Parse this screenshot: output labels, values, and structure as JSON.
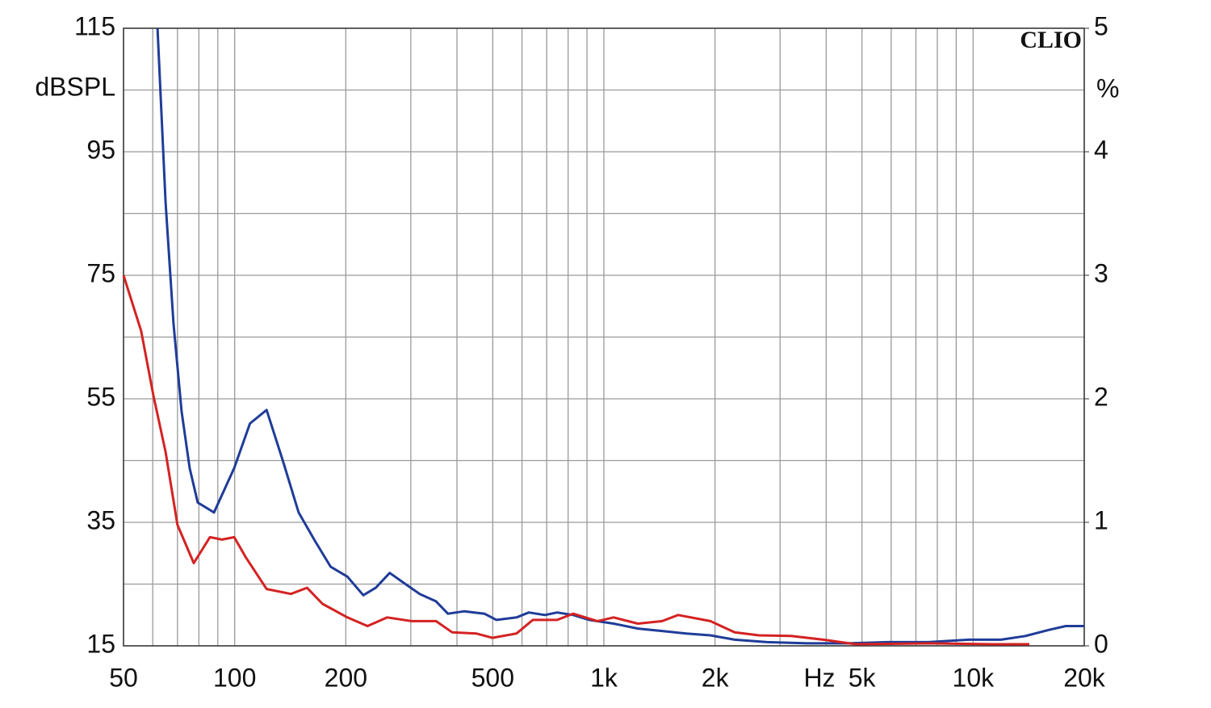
{
  "chart_data": {
    "type": "line",
    "xscale": "log",
    "grid": true,
    "xlim": [
      50,
      20000
    ],
    "xticks": [
      50,
      100,
      200,
      500,
      {
        "value": 1000,
        "label": "1k"
      },
      {
        "value": 2000,
        "label": "2k"
      },
      {
        "value": 5000,
        "label": "5k"
      },
      {
        "value": 10000,
        "label": "10k"
      },
      {
        "value": 20000,
        "label": "20k"
      }
    ],
    "xgrid": [
      60,
      70,
      80,
      90,
      300,
      400,
      600,
      700,
      800,
      900,
      3000,
      4000,
      6000,
      7000,
      8000,
      9000
    ],
    "xlabel": "Hz",
    "ylim": [
      15,
      115
    ],
    "yticks": [
      15,
      35,
      55,
      75,
      95,
      115
    ],
    "ygrid": [
      25,
      45,
      65,
      85,
      105
    ],
    "ylabel": "dBSPL",
    "y2lim": [
      0,
      5
    ],
    "y2ticks": [
      0,
      1,
      2,
      3,
      4,
      5
    ],
    "y2label": "%",
    "logo": "CLIO",
    "series": [
      {
        "color": "#1f3c98",
        "axis": "y2",
        "x": [
          61.8,
          65,
          68.3,
          71.8,
          75.5,
          79.4,
          87.9,
          99.7,
          110,
          122,
          135,
          149,
          165,
          182,
          202,
          223,
          241,
          263,
          287,
          317,
          351,
          378,
          419,
          475,
          512,
          580,
          626,
          692,
          747,
          826,
          913,
          1063,
          1236,
          1437,
          1671,
          1944,
          2261,
          2767,
          3557,
          4574,
          5886,
          7570,
          9731,
          11900,
          13860,
          16110,
          17820,
          20000
        ],
        "values": [
          5.0,
          3.59,
          2.61,
          1.9,
          1.44,
          1.16,
          1.08,
          1.44,
          1.8,
          1.91,
          1.5,
          1.08,
          0.85,
          0.64,
          0.56,
          0.41,
          0.47,
          0.59,
          0.51,
          0.42,
          0.36,
          0.26,
          0.28,
          0.26,
          0.21,
          0.23,
          0.27,
          0.25,
          0.27,
          0.25,
          0.21,
          0.18,
          0.14,
          0.12,
          0.1,
          0.085,
          0.05,
          0.03,
          0.02,
          0.02,
          0.03,
          0.03,
          0.05,
          0.05,
          0.08,
          0.13,
          0.16,
          0.16
        ]
      },
      {
        "color": "#d42222",
        "axis": "y2",
        "x": [
          50,
          55.8,
          60.2,
          65,
          70,
          77.5,
          85.7,
          92.4,
          99.7,
          107,
          122,
          142,
          157,
          173,
          202,
          229,
          259,
          302,
          351,
          388,
          451,
          499,
          580,
          642,
          747,
          826,
          961,
          1063,
          1236,
          1437,
          1589,
          1944,
          2261,
          2630,
          3215,
          3934,
          4811,
          7570,
          11326,
          14200
        ],
        "values": [
          3.0,
          2.55,
          2.03,
          1.57,
          0.98,
          0.67,
          0.88,
          0.86,
          0.88,
          0.72,
          0.46,
          0.42,
          0.47,
          0.34,
          0.23,
          0.16,
          0.23,
          0.2,
          0.2,
          0.11,
          0.1,
          0.065,
          0.1,
          0.21,
          0.21,
          0.26,
          0.2,
          0.23,
          0.18,
          0.2,
          0.25,
          0.2,
          0.11,
          0.085,
          0.08,
          0.05,
          0.013,
          0.02,
          0.013,
          0.013
        ]
      }
    ]
  }
}
